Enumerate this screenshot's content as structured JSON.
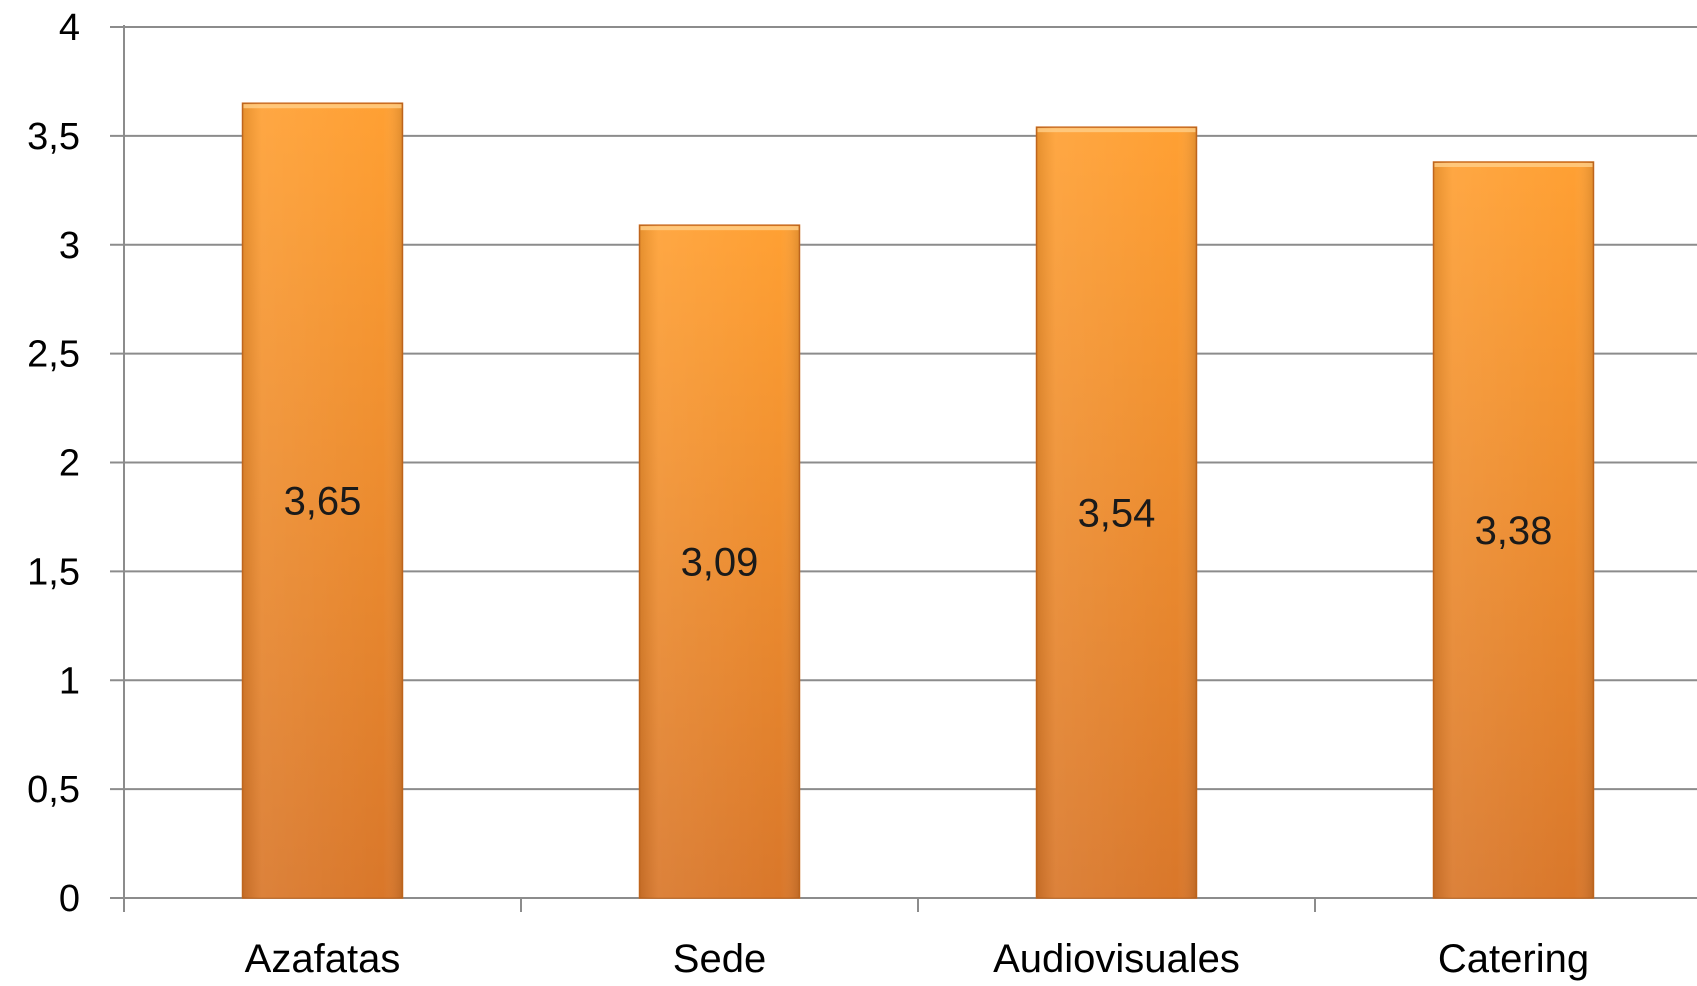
{
  "chart_data": {
    "type": "bar",
    "categories": [
      "Azafatas",
      "Sede",
      "Audiovisuales",
      "Catering"
    ],
    "values": [
      3.65,
      3.09,
      3.54,
      3.38
    ],
    "data_labels": [
      "3,65",
      "3,09",
      "3,54",
      "3,38"
    ],
    "y_ticks": [
      0,
      0.5,
      1,
      1.5,
      2,
      2.5,
      3,
      3.5,
      4
    ],
    "y_tick_labels": [
      "0",
      "0,5",
      "1",
      "1,5",
      "2",
      "2,5",
      "3",
      "3,5",
      "4"
    ],
    "ylim": [
      0,
      4
    ],
    "grid": true,
    "legend": "none",
    "bar_color_top": "#ffa033",
    "bar_color_bottom": "#d9772a",
    "bar_edge_color": "#c96a1e",
    "gridline_color": "#8c8c8c"
  }
}
